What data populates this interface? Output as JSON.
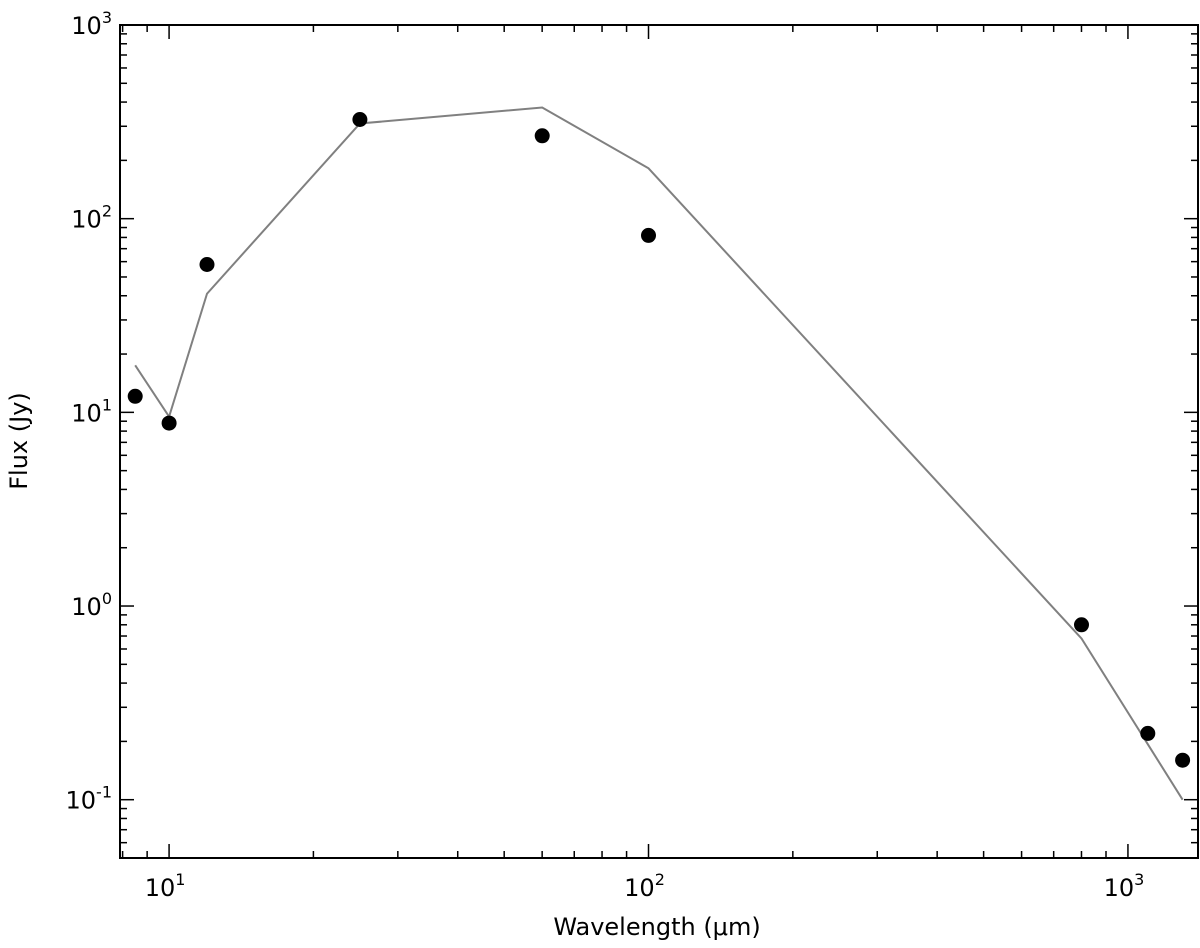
{
  "chart_data": {
    "type": "scatter",
    "title": "",
    "xlabel": "Wavelength (μm)",
    "ylabel": "Flux (Jy)",
    "xscale": "log",
    "yscale": "log",
    "xlim": [
      7.9,
      1400
    ],
    "ylim": [
      0.05,
      1000
    ],
    "grid": false,
    "legend": "none",
    "x_ticks": [
      {
        "value": 10,
        "base": "10",
        "exp": "1"
      },
      {
        "value": 100,
        "base": "10",
        "exp": "2"
      },
      {
        "value": 1000,
        "base": "10",
        "exp": "3"
      }
    ],
    "y_ticks": [
      {
        "value": 0.1,
        "base": "10",
        "exp": "-1"
      },
      {
        "value": 1,
        "base": "10",
        "exp": "0"
      },
      {
        "value": 10,
        "base": "10",
        "exp": "1"
      },
      {
        "value": 100,
        "base": "10",
        "exp": "2"
      },
      {
        "value": 1000,
        "base": "10",
        "exp": "3"
      }
    ],
    "series": [
      {
        "kind": "points",
        "color": "#000000",
        "points": [
          {
            "x": 8.5,
            "y": 12.1
          },
          {
            "x": 10,
            "y": 8.8
          },
          {
            "x": 12,
            "y": 58
          },
          {
            "x": 25,
            "y": 325
          },
          {
            "x": 60,
            "y": 268
          },
          {
            "x": 100,
            "y": 82
          },
          {
            "x": 800,
            "y": 0.8
          },
          {
            "x": 1100,
            "y": 0.22
          },
          {
            "x": 1300,
            "y": 0.16
          }
        ]
      },
      {
        "kind": "line",
        "color": "#808080",
        "points": [
          {
            "x": 8.5,
            "y": 17.5
          },
          {
            "x": 10,
            "y": 9.5
          },
          {
            "x": 12,
            "y": 41
          },
          {
            "x": 25,
            "y": 310
          },
          {
            "x": 60,
            "y": 375
          },
          {
            "x": 100,
            "y": 182
          },
          {
            "x": 800,
            "y": 0.68
          },
          {
            "x": 1300,
            "y": 0.1
          }
        ]
      }
    ]
  }
}
